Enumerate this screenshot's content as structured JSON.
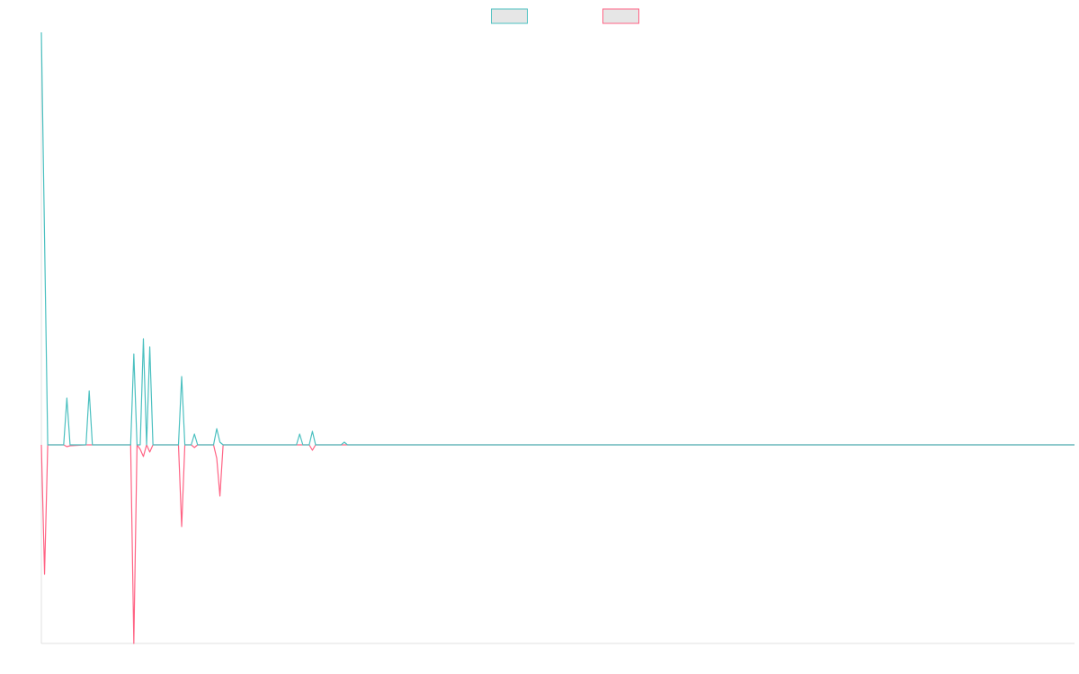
{
  "chart_data": {
    "type": "line",
    "legend": "top",
    "x": [
      0,
      1,
      2,
      7,
      8,
      9,
      14,
      15,
      16,
      28,
      29,
      30,
      31,
      32,
      33,
      34,
      35,
      43,
      44,
      45,
      47,
      48,
      49,
      54,
      55,
      56,
      57,
      80,
      81,
      82,
      84,
      85,
      86,
      94,
      95,
      96,
      324
    ],
    "xlim": [
      0,
      324
    ],
    "ylim": [
      -221,
      459
    ],
    "series": [
      {
        "color": "#4bc0c0",
        "values": [
          459,
          230,
          0,
          0,
          52,
          0,
          0,
          60,
          0,
          0,
          101,
          0,
          0,
          118,
          0,
          109,
          0,
          0,
          76,
          0,
          0,
          12,
          0,
          0,
          18,
          3,
          0,
          0,
          12,
          0,
          0,
          15,
          0,
          0,
          3,
          0,
          0
        ]
      },
      {
        "color": "#ff6384",
        "values": [
          0,
          -144,
          0,
          0,
          -2,
          -1,
          0,
          0,
          0,
          0,
          -221,
          0,
          -5,
          -13,
          0,
          -8,
          0,
          0,
          -91,
          0,
          0,
          -3,
          0,
          0,
          -15,
          -57,
          0,
          0,
          0,
          0,
          0,
          -6,
          0,
          0,
          0,
          0,
          0
        ]
      }
    ]
  }
}
